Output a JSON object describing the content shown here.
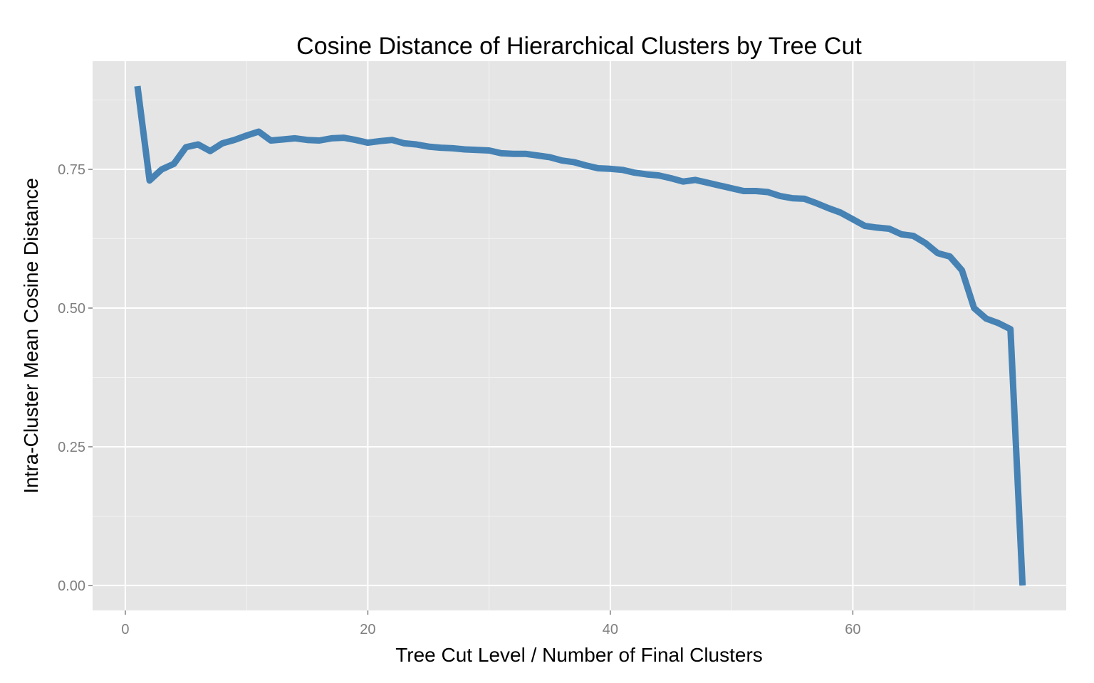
{
  "chart_data": {
    "type": "line",
    "title": "Cosine Distance of Hierarchical Clusters by Tree Cut",
    "xlabel": "Tree Cut Level / Number of Final Clusters",
    "ylabel": "Intra-Cluster Mean Cosine Distance",
    "xlim": [
      -2.7,
      77.6
    ],
    "ylim": [
      -0.045,
      0.945
    ],
    "x_ticks": [
      0,
      20,
      40,
      60
    ],
    "x_tick_labels": [
      "0",
      "20",
      "40",
      "60"
    ],
    "y_ticks": [
      0,
      0.25,
      0.5,
      0.75
    ],
    "y_tick_labels": [
      "0.00",
      "0.25",
      "0.50",
      "0.75"
    ],
    "x_minor_ticks": [
      10,
      30,
      50,
      70
    ],
    "y_minor_ticks": [
      0.125,
      0.375,
      0.625,
      0.875
    ],
    "grid": true,
    "legend": "none",
    "line_color": "#4682b4",
    "panel_color": "#e5e5e5",
    "series": [
      {
        "x": [
          1,
          2,
          3,
          4,
          5,
          6,
          7,
          8,
          9,
          10,
          11,
          12,
          13,
          14,
          15,
          16,
          17,
          18,
          19,
          20,
          21,
          22,
          23,
          24,
          25,
          26,
          27,
          28,
          29,
          30,
          31,
          32,
          33,
          34,
          35,
          36,
          37,
          38,
          39,
          40,
          41,
          42,
          43,
          44,
          45,
          46,
          47,
          48,
          49,
          50,
          51,
          52,
          53,
          54,
          55,
          56,
          57,
          58,
          59,
          60,
          61,
          62,
          63,
          64,
          65,
          66,
          67,
          68,
          69,
          70,
          71,
          72,
          73,
          74
        ],
        "y": [
          0.9,
          0.73,
          0.75,
          0.76,
          0.79,
          0.795,
          0.783,
          0.797,
          0.803,
          0.811,
          0.818,
          0.802,
          0.804,
          0.806,
          0.803,
          0.802,
          0.806,
          0.807,
          0.803,
          0.798,
          0.801,
          0.803,
          0.797,
          0.795,
          0.791,
          0.789,
          0.788,
          0.786,
          0.785,
          0.784,
          0.779,
          0.778,
          0.778,
          0.775,
          0.772,
          0.766,
          0.763,
          0.757,
          0.752,
          0.751,
          0.749,
          0.744,
          0.741,
          0.739,
          0.734,
          0.728,
          0.731,
          0.726,
          0.721,
          0.716,
          0.711,
          0.711,
          0.709,
          0.702,
          0.698,
          0.697,
          0.689,
          0.68,
          0.672,
          0.66,
          0.648,
          0.645,
          0.643,
          0.633,
          0.63,
          0.617,
          0.599,
          0.593,
          0.568,
          0.5,
          0.481,
          0.473,
          0.462,
          0.0
        ]
      }
    ]
  }
}
